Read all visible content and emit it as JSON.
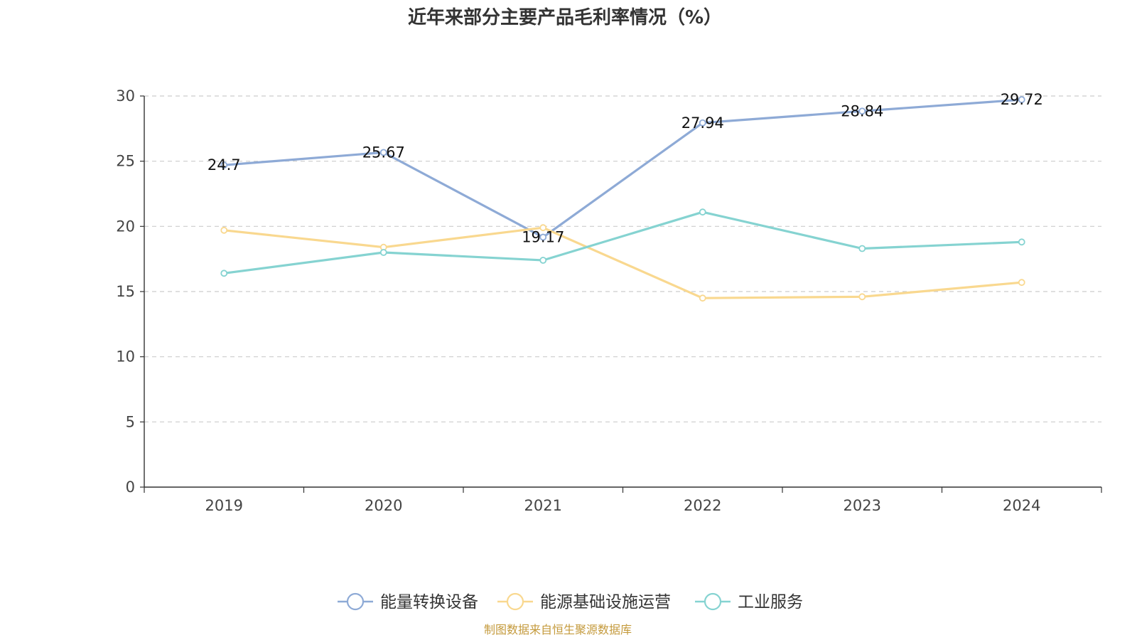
{
  "chart_data": {
    "type": "line",
    "title": "近年来部分主要产品毛利率情况（%）",
    "categories": [
      "2019",
      "2020",
      "2021",
      "2022",
      "2023",
      "2024"
    ],
    "ylim": [
      0,
      30
    ],
    "yticks": [
      0,
      5,
      10,
      15,
      20,
      25,
      30
    ],
    "ytick_labels": [
      "0",
      "5",
      "10",
      "15",
      "20",
      "25",
      "30"
    ],
    "grid": true,
    "legend_position": "bottom-center",
    "series": [
      {
        "name": "能量转换设备",
        "color": "#8eaad6",
        "values": [
          24.7,
          25.67,
          19.17,
          27.94,
          28.84,
          29.72
        ],
        "data_labels": [
          "24.7",
          "25.67",
          "19.17",
          "27.94",
          "28.84",
          "29.72"
        ]
      },
      {
        "name": "能源基础设施运营",
        "color": "#f9d88f",
        "values": [
          19.7,
          18.4,
          19.9,
          14.5,
          14.6,
          15.7
        ]
      },
      {
        "name": "工业服务",
        "color": "#85d3d1",
        "values": [
          16.4,
          18.0,
          17.4,
          21.1,
          18.3,
          18.8
        ]
      }
    ]
  },
  "source": "制图数据来自恒生聚源数据库",
  "source_color": "#c49a3c"
}
